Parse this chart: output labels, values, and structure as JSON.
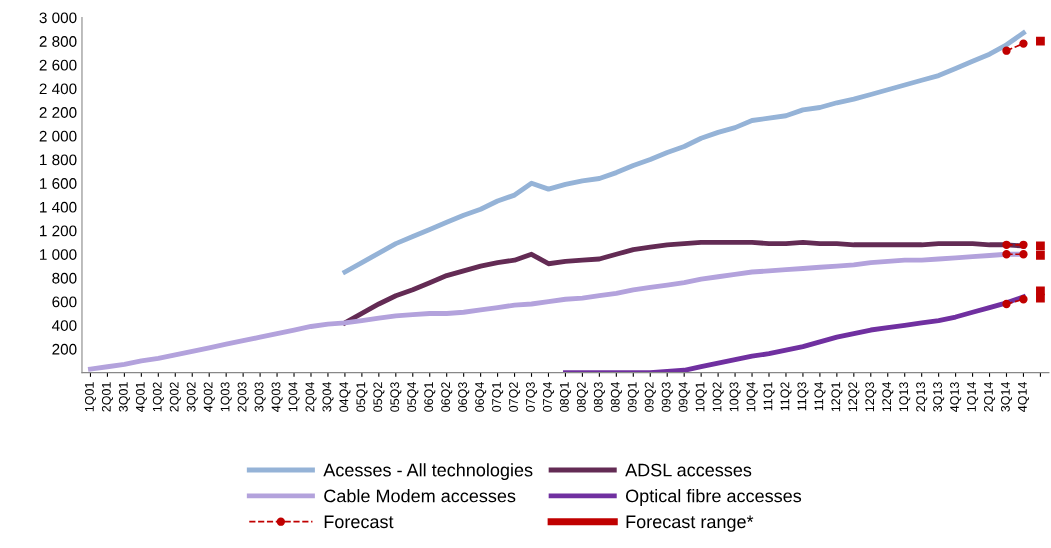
{
  "chart_data": {
    "type": "line",
    "categories": [
      "1Q01",
      "2Q01",
      "3Q01",
      "4Q01",
      "1Q02",
      "2Q02",
      "3Q02",
      "4Q02",
      "1Q03",
      "2Q03",
      "3Q03",
      "4Q03",
      "1Q04",
      "2Q04",
      "3Q04",
      "04Q4",
      "05Q1",
      "05Q2",
      "05Q3",
      "05Q4",
      "06Q1",
      "06Q2",
      "06Q3",
      "06Q4",
      "07Q1",
      "07Q2",
      "07Q3",
      "07Q4",
      "08Q1",
      "08Q2",
      "08Q3",
      "08Q4",
      "09Q1",
      "09Q2",
      "09Q3",
      "09Q4",
      "10Q1",
      "10Q2",
      "10Q3",
      "10Q4",
      "11Q1",
      "11Q2",
      "11Q3",
      "11Q4",
      "12Q1",
      "12Q2",
      "12Q3",
      "12Q4",
      "1Q13",
      "2Q13",
      "3Q13",
      "4Q13",
      "1Q14",
      "2Q14",
      "3Q14",
      "4Q14",
      null
    ],
    "series": [
      {
        "name": "Acesses - All technologies",
        "color": "#95b3d7",
        "values": [
          null,
          null,
          null,
          null,
          null,
          null,
          null,
          null,
          null,
          null,
          null,
          null,
          null,
          null,
          null,
          850,
          930,
          1010,
          1090,
          1150,
          1210,
          1270,
          1330,
          1380,
          1450,
          1500,
          1600,
          1550,
          1590,
          1620,
          1640,
          1690,
          1750,
          1800,
          1860,
          1910,
          1980,
          2030,
          2070,
          2130,
          2150,
          2170,
          2220,
          2240,
          2280,
          2310,
          2350,
          2390,
          2430,
          2470,
          2510,
          2570,
          2630,
          2690,
          2770,
          2870,
          null
        ]
      },
      {
        "name": "ADSL accesses",
        "color": "#632b54",
        "values": [
          null,
          null,
          null,
          null,
          null,
          null,
          null,
          null,
          null,
          null,
          null,
          null,
          null,
          null,
          null,
          420,
          500,
          580,
          650,
          700,
          760,
          820,
          860,
          900,
          930,
          950,
          1000,
          920,
          940,
          950,
          960,
          1000,
          1040,
          1060,
          1080,
          1090,
          1100,
          1100,
          1100,
          1100,
          1090,
          1090,
          1100,
          1090,
          1090,
          1080,
          1080,
          1080,
          1080,
          1080,
          1090,
          1090,
          1090,
          1080,
          1080,
          1070,
          null
        ]
      },
      {
        "name": "Cable Modem accesses",
        "color": "#b3a2dc",
        "values": [
          30,
          50,
          70,
          100,
          120,
          150,
          180,
          210,
          240,
          270,
          300,
          330,
          360,
          390,
          410,
          420,
          440,
          460,
          480,
          490,
          500,
          500,
          510,
          530,
          550,
          570,
          580,
          600,
          620,
          630,
          650,
          670,
          700,
          720,
          740,
          760,
          790,
          810,
          830,
          850,
          860,
          870,
          880,
          890,
          900,
          910,
          930,
          940,
          950,
          950,
          960,
          970,
          980,
          990,
          1000,
          1000,
          null
        ]
      },
      {
        "name": "Optical fibre accesses",
        "color": "#7030a0",
        "values": [
          null,
          null,
          null,
          null,
          null,
          null,
          null,
          null,
          null,
          null,
          null,
          null,
          null,
          null,
          null,
          null,
          null,
          null,
          null,
          null,
          null,
          null,
          null,
          null,
          null,
          null,
          null,
          null,
          0,
          0,
          0,
          0,
          0,
          0,
          10,
          20,
          50,
          80,
          110,
          140,
          160,
          190,
          220,
          260,
          300,
          330,
          360,
          380,
          400,
          420,
          440,
          470,
          510,
          550,
          590,
          640,
          null
        ]
      },
      {
        "name": "Forecast",
        "color": "#c00000",
        "line_style": "dashed",
        "marker": "circle",
        "values": [
          null,
          null,
          null,
          null,
          null,
          null,
          null,
          null,
          null,
          null,
          null,
          null,
          null,
          null,
          null,
          null,
          null,
          null,
          null,
          null,
          null,
          null,
          null,
          null,
          null,
          null,
          null,
          null,
          null,
          null,
          null,
          null,
          null,
          null,
          null,
          null,
          null,
          null,
          null,
          null,
          null,
          null,
          null,
          null,
          null,
          null,
          null,
          null,
          null,
          null,
          null,
          null,
          null,
          null,
          2720,
          2780,
          null
        ]
      },
      {
        "color": "#c00000",
        "line_style": "dashed",
        "marker": "circle",
        "values": [
          null,
          null,
          null,
          null,
          null,
          null,
          null,
          null,
          null,
          null,
          null,
          null,
          null,
          null,
          null,
          null,
          null,
          null,
          null,
          null,
          null,
          null,
          null,
          null,
          null,
          null,
          null,
          null,
          null,
          null,
          null,
          null,
          null,
          null,
          null,
          null,
          null,
          null,
          null,
          null,
          null,
          null,
          null,
          null,
          null,
          null,
          null,
          null,
          null,
          null,
          null,
          null,
          null,
          null,
          1080,
          1080,
          null
        ]
      },
      {
        "color": "#c00000",
        "line_style": "dashed",
        "marker": "circle",
        "values": [
          null,
          null,
          null,
          null,
          null,
          null,
          null,
          null,
          null,
          null,
          null,
          null,
          null,
          null,
          null,
          null,
          null,
          null,
          null,
          null,
          null,
          null,
          null,
          null,
          null,
          null,
          null,
          null,
          null,
          null,
          null,
          null,
          null,
          null,
          null,
          null,
          null,
          null,
          null,
          null,
          null,
          null,
          null,
          null,
          null,
          null,
          null,
          null,
          null,
          null,
          null,
          null,
          null,
          null,
          1000,
          1000,
          null
        ]
      },
      {
        "color": "#c00000",
        "line_style": "dashed",
        "marker": "circle",
        "values": [
          null,
          null,
          null,
          null,
          null,
          null,
          null,
          null,
          null,
          null,
          null,
          null,
          null,
          null,
          null,
          null,
          null,
          null,
          null,
          null,
          null,
          null,
          null,
          null,
          null,
          null,
          null,
          null,
          null,
          null,
          null,
          null,
          null,
          null,
          null,
          null,
          null,
          null,
          null,
          null,
          null,
          null,
          null,
          null,
          null,
          null,
          null,
          null,
          null,
          null,
          null,
          null,
          null,
          null,
          580,
          620,
          null
        ]
      },
      {
        "name": "Forecast range*",
        "type": "scatter",
        "color": "#c00000",
        "marker": "square",
        "values": [
          null,
          null,
          null,
          null,
          null,
          null,
          null,
          null,
          null,
          null,
          null,
          null,
          null,
          null,
          null,
          null,
          null,
          null,
          null,
          null,
          null,
          null,
          null,
          null,
          null,
          null,
          null,
          null,
          null,
          null,
          null,
          null,
          null,
          null,
          null,
          null,
          null,
          null,
          null,
          null,
          null,
          null,
          null,
          null,
          null,
          null,
          null,
          null,
          null,
          null,
          null,
          null,
          null,
          null,
          null,
          null,
          2800
        ]
      },
      {
        "type": "scatter",
        "color": "#c00000",
        "marker": "square",
        "values": [
          null,
          null,
          null,
          null,
          null,
          null,
          null,
          null,
          null,
          null,
          null,
          null,
          null,
          null,
          null,
          null,
          null,
          null,
          null,
          null,
          null,
          null,
          null,
          null,
          null,
          null,
          null,
          null,
          null,
          null,
          null,
          null,
          null,
          null,
          null,
          null,
          null,
          null,
          null,
          null,
          null,
          null,
          null,
          null,
          null,
          null,
          null,
          null,
          null,
          null,
          null,
          null,
          null,
          null,
          null,
          null,
          1070
        ]
      },
      {
        "type": "scatter",
        "color": "#c00000",
        "marker": "square",
        "values": [
          null,
          null,
          null,
          null,
          null,
          null,
          null,
          null,
          null,
          null,
          null,
          null,
          null,
          null,
          null,
          null,
          null,
          null,
          null,
          null,
          null,
          null,
          null,
          null,
          null,
          null,
          null,
          null,
          null,
          null,
          null,
          null,
          null,
          null,
          null,
          null,
          null,
          null,
          null,
          null,
          null,
          null,
          null,
          null,
          null,
          null,
          null,
          null,
          null,
          null,
          null,
          null,
          null,
          null,
          null,
          null,
          990
        ]
      },
      {
        "type": "scatter",
        "color": "#c00000",
        "marker": "square",
        "values": [
          null,
          null,
          null,
          null,
          null,
          null,
          null,
          null,
          null,
          null,
          null,
          null,
          null,
          null,
          null,
          null,
          null,
          null,
          null,
          null,
          null,
          null,
          null,
          null,
          null,
          null,
          null,
          null,
          null,
          null,
          null,
          null,
          null,
          null,
          null,
          null,
          null,
          null,
          null,
          null,
          null,
          null,
          null,
          null,
          null,
          null,
          null,
          null,
          null,
          null,
          null,
          null,
          null,
          null,
          null,
          null,
          690
        ]
      },
      {
        "type": "scatter",
        "color": "#c00000",
        "marker": "square",
        "values": [
          null,
          null,
          null,
          null,
          null,
          null,
          null,
          null,
          null,
          null,
          null,
          null,
          null,
          null,
          null,
          null,
          null,
          null,
          null,
          null,
          null,
          null,
          null,
          null,
          null,
          null,
          null,
          null,
          null,
          null,
          null,
          null,
          null,
          null,
          null,
          null,
          null,
          null,
          null,
          null,
          null,
          null,
          null,
          null,
          null,
          null,
          null,
          null,
          null,
          null,
          null,
          null,
          null,
          null,
          null,
          null,
          630
        ]
      }
    ],
    "ylim": [
      0,
      3000
    ],
    "yticks": [
      {
        "value": 200,
        "label": "200"
      },
      {
        "value": 400,
        "label": "400"
      },
      {
        "value": 600,
        "label": "600"
      },
      {
        "value": 800,
        "label": "800"
      },
      {
        "value": 1000,
        "label": "1 000"
      },
      {
        "value": 1200,
        "label": "1 200"
      },
      {
        "value": 1400,
        "label": "1 400"
      },
      {
        "value": 1600,
        "label": "1 600"
      },
      {
        "value": 1800,
        "label": "1 800"
      },
      {
        "value": 2000,
        "label": "2 000"
      },
      {
        "value": 2200,
        "label": "2 200"
      },
      {
        "value": 2400,
        "label": "2 400"
      },
      {
        "value": 2600,
        "label": "2 600"
      },
      {
        "value": 2800,
        "label": "2 800"
      },
      {
        "value": 3000,
        "label": "3 000"
      }
    ],
    "grid": false,
    "legend": "bottom",
    "line_style": "solid",
    "marker": "none"
  }
}
